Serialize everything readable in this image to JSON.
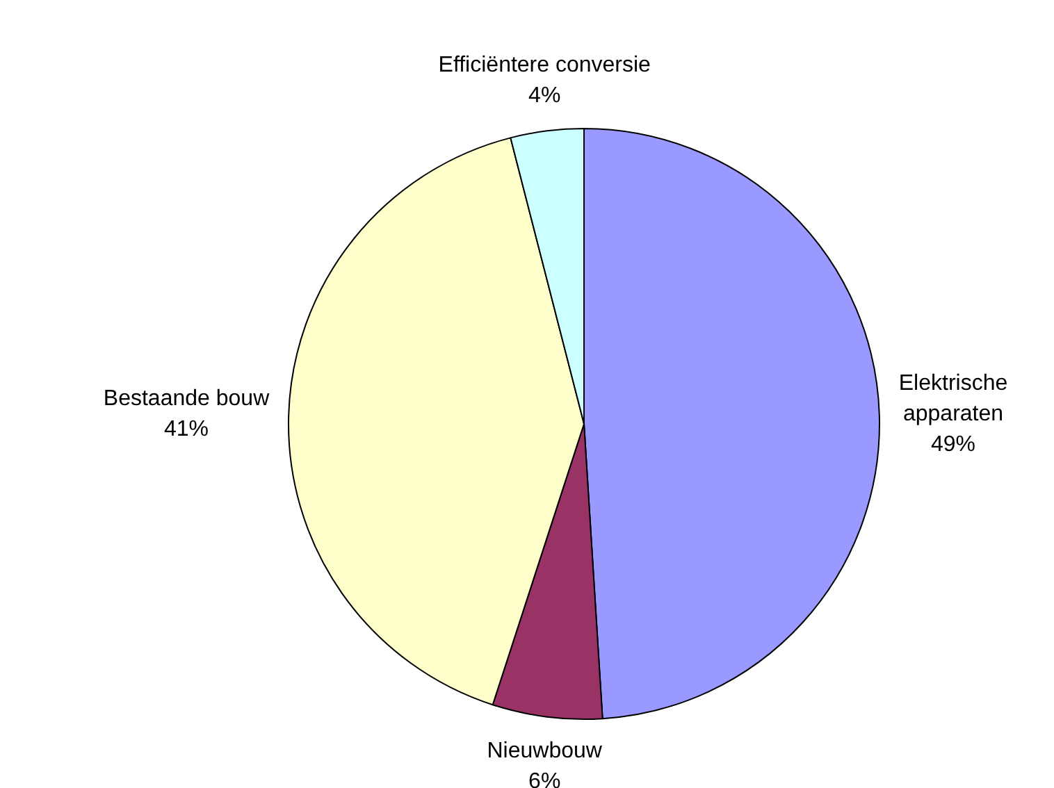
{
  "chart_data": {
    "type": "pie",
    "categories": [
      "Elektrische apparaten",
      "Nieuwbouw",
      "Bestaande bouw",
      "Efficiëntere conversie"
    ],
    "values": [
      49,
      6,
      41,
      4
    ],
    "value_labels": [
      "49%",
      "6%",
      "41%",
      "4%"
    ],
    "colors": [
      "#9999ff",
      "#993366",
      "#ffffcc",
      "#ccffff"
    ],
    "legend": false
  }
}
